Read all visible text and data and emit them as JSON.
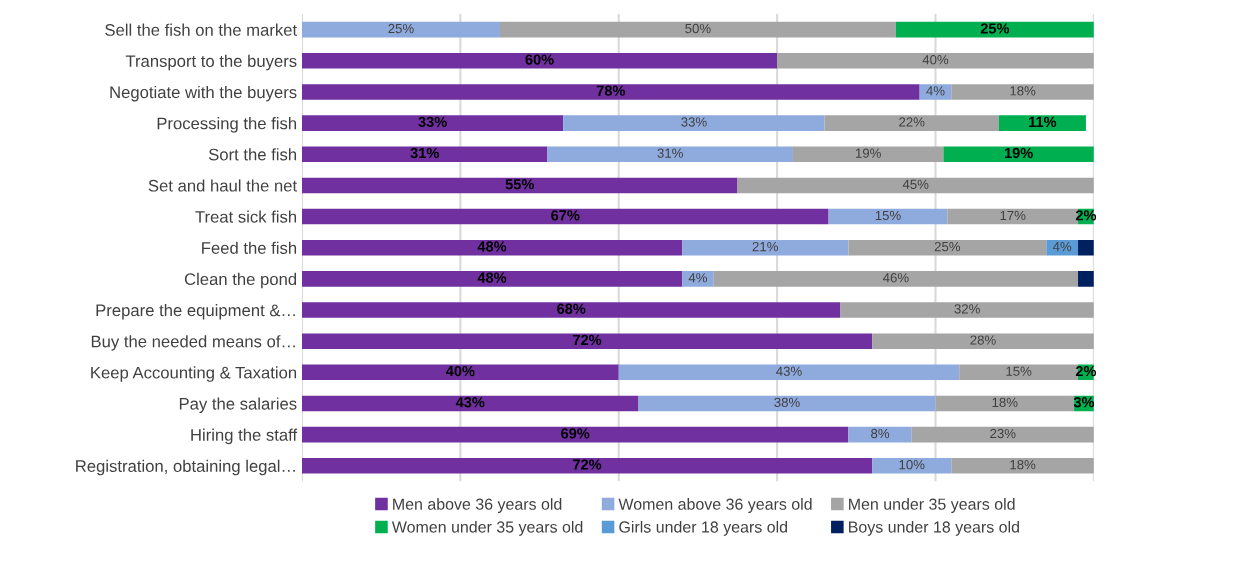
{
  "chart_data": {
    "type": "bar",
    "orientation": "horizontal",
    "stacked": true,
    "grid": "x",
    "legend": "bottom",
    "xlim": [
      0,
      100
    ],
    "xticks": [
      {
        "value": 0,
        "label": null
      },
      {
        "value": 20,
        "label": null
      },
      {
        "value": 40,
        "label": null
      },
      {
        "value": 60,
        "label": null
      },
      {
        "value": 80,
        "label": null
      },
      {
        "value": 100,
        "label": null
      }
    ],
    "categories": [
      "Sell the fish on the market",
      "Transport to the buyers",
      "Negotiate with the buyers",
      "Processing the fish",
      "Sort the fish",
      "Set and haul the net",
      "Treat sick fish",
      "Feed the fish",
      "Clean the pond",
      "Prepare the equipment &…",
      "Buy the needed means of…",
      "Keep Accounting & Taxation",
      "Pay the salaries",
      "Hiring the staff",
      "Registration, obtaining legal…"
    ],
    "series": [
      {
        "name": "Men above 36 years old",
        "color": "#7030a0",
        "values": [
          null,
          60,
          78,
          33,
          31,
          55,
          66.5,
          48,
          48,
          68,
          72,
          40,
          42.5,
          69,
          72
        ],
        "value_labels": [
          null,
          "60%",
          "78%",
          "33%",
          "31%",
          "55%",
          "67%",
          "48%",
          "48%",
          "68%",
          "72%",
          "40%",
          "43%",
          "69%",
          "72%"
        ]
      },
      {
        "name": "Women above 36 years old",
        "color": "#8faadc",
        "values": [
          25,
          null,
          4,
          33,
          31,
          null,
          15,
          21,
          4,
          null,
          null,
          43,
          37.5,
          8,
          10
        ],
        "value_labels": [
          "25%",
          null,
          "4%",
          "33%",
          "31%",
          null,
          "15%",
          "21%",
          "4%",
          null,
          null,
          "43%",
          "38%",
          "8%",
          "10%"
        ]
      },
      {
        "name": "Men under 35 years old",
        "color": "#a5a5a5",
        "values": [
          50,
          40,
          18,
          22,
          19,
          45,
          16.5,
          25,
          46,
          32,
          28,
          15,
          17.5,
          23,
          18
        ],
        "value_labels": [
          "50%",
          "40%",
          "18%",
          "22%",
          "19%",
          "45%",
          "17%",
          "25%",
          "46%",
          "32%",
          "28%",
          "15%",
          "18%",
          "23%",
          "18%"
        ]
      },
      {
        "name": "Women under 35 years old",
        "color": "#00b050",
        "values": [
          25,
          null,
          null,
          11,
          19,
          null,
          2,
          null,
          null,
          null,
          null,
          2,
          2.5,
          null,
          null
        ],
        "value_labels": [
          "25%",
          null,
          null,
          "11%",
          "19%",
          null,
          "2%",
          null,
          null,
          null,
          null,
          "2%",
          "3%",
          null,
          null
        ]
      },
      {
        "name": "Girls under 18 years old",
        "color": "#5b9bd5",
        "values": [
          null,
          null,
          null,
          null,
          null,
          null,
          null,
          4,
          null,
          null,
          null,
          null,
          null,
          null,
          null
        ],
        "value_labels": [
          null,
          null,
          null,
          null,
          null,
          null,
          null,
          "4%",
          null,
          null,
          null,
          null,
          null,
          null,
          null
        ]
      },
      {
        "name": "Boys under 18 years old",
        "color": "#002060",
        "values": [
          null,
          null,
          null,
          null,
          null,
          null,
          null,
          2,
          2,
          null,
          null,
          null,
          null,
          null,
          null
        ]
      }
    ]
  }
}
